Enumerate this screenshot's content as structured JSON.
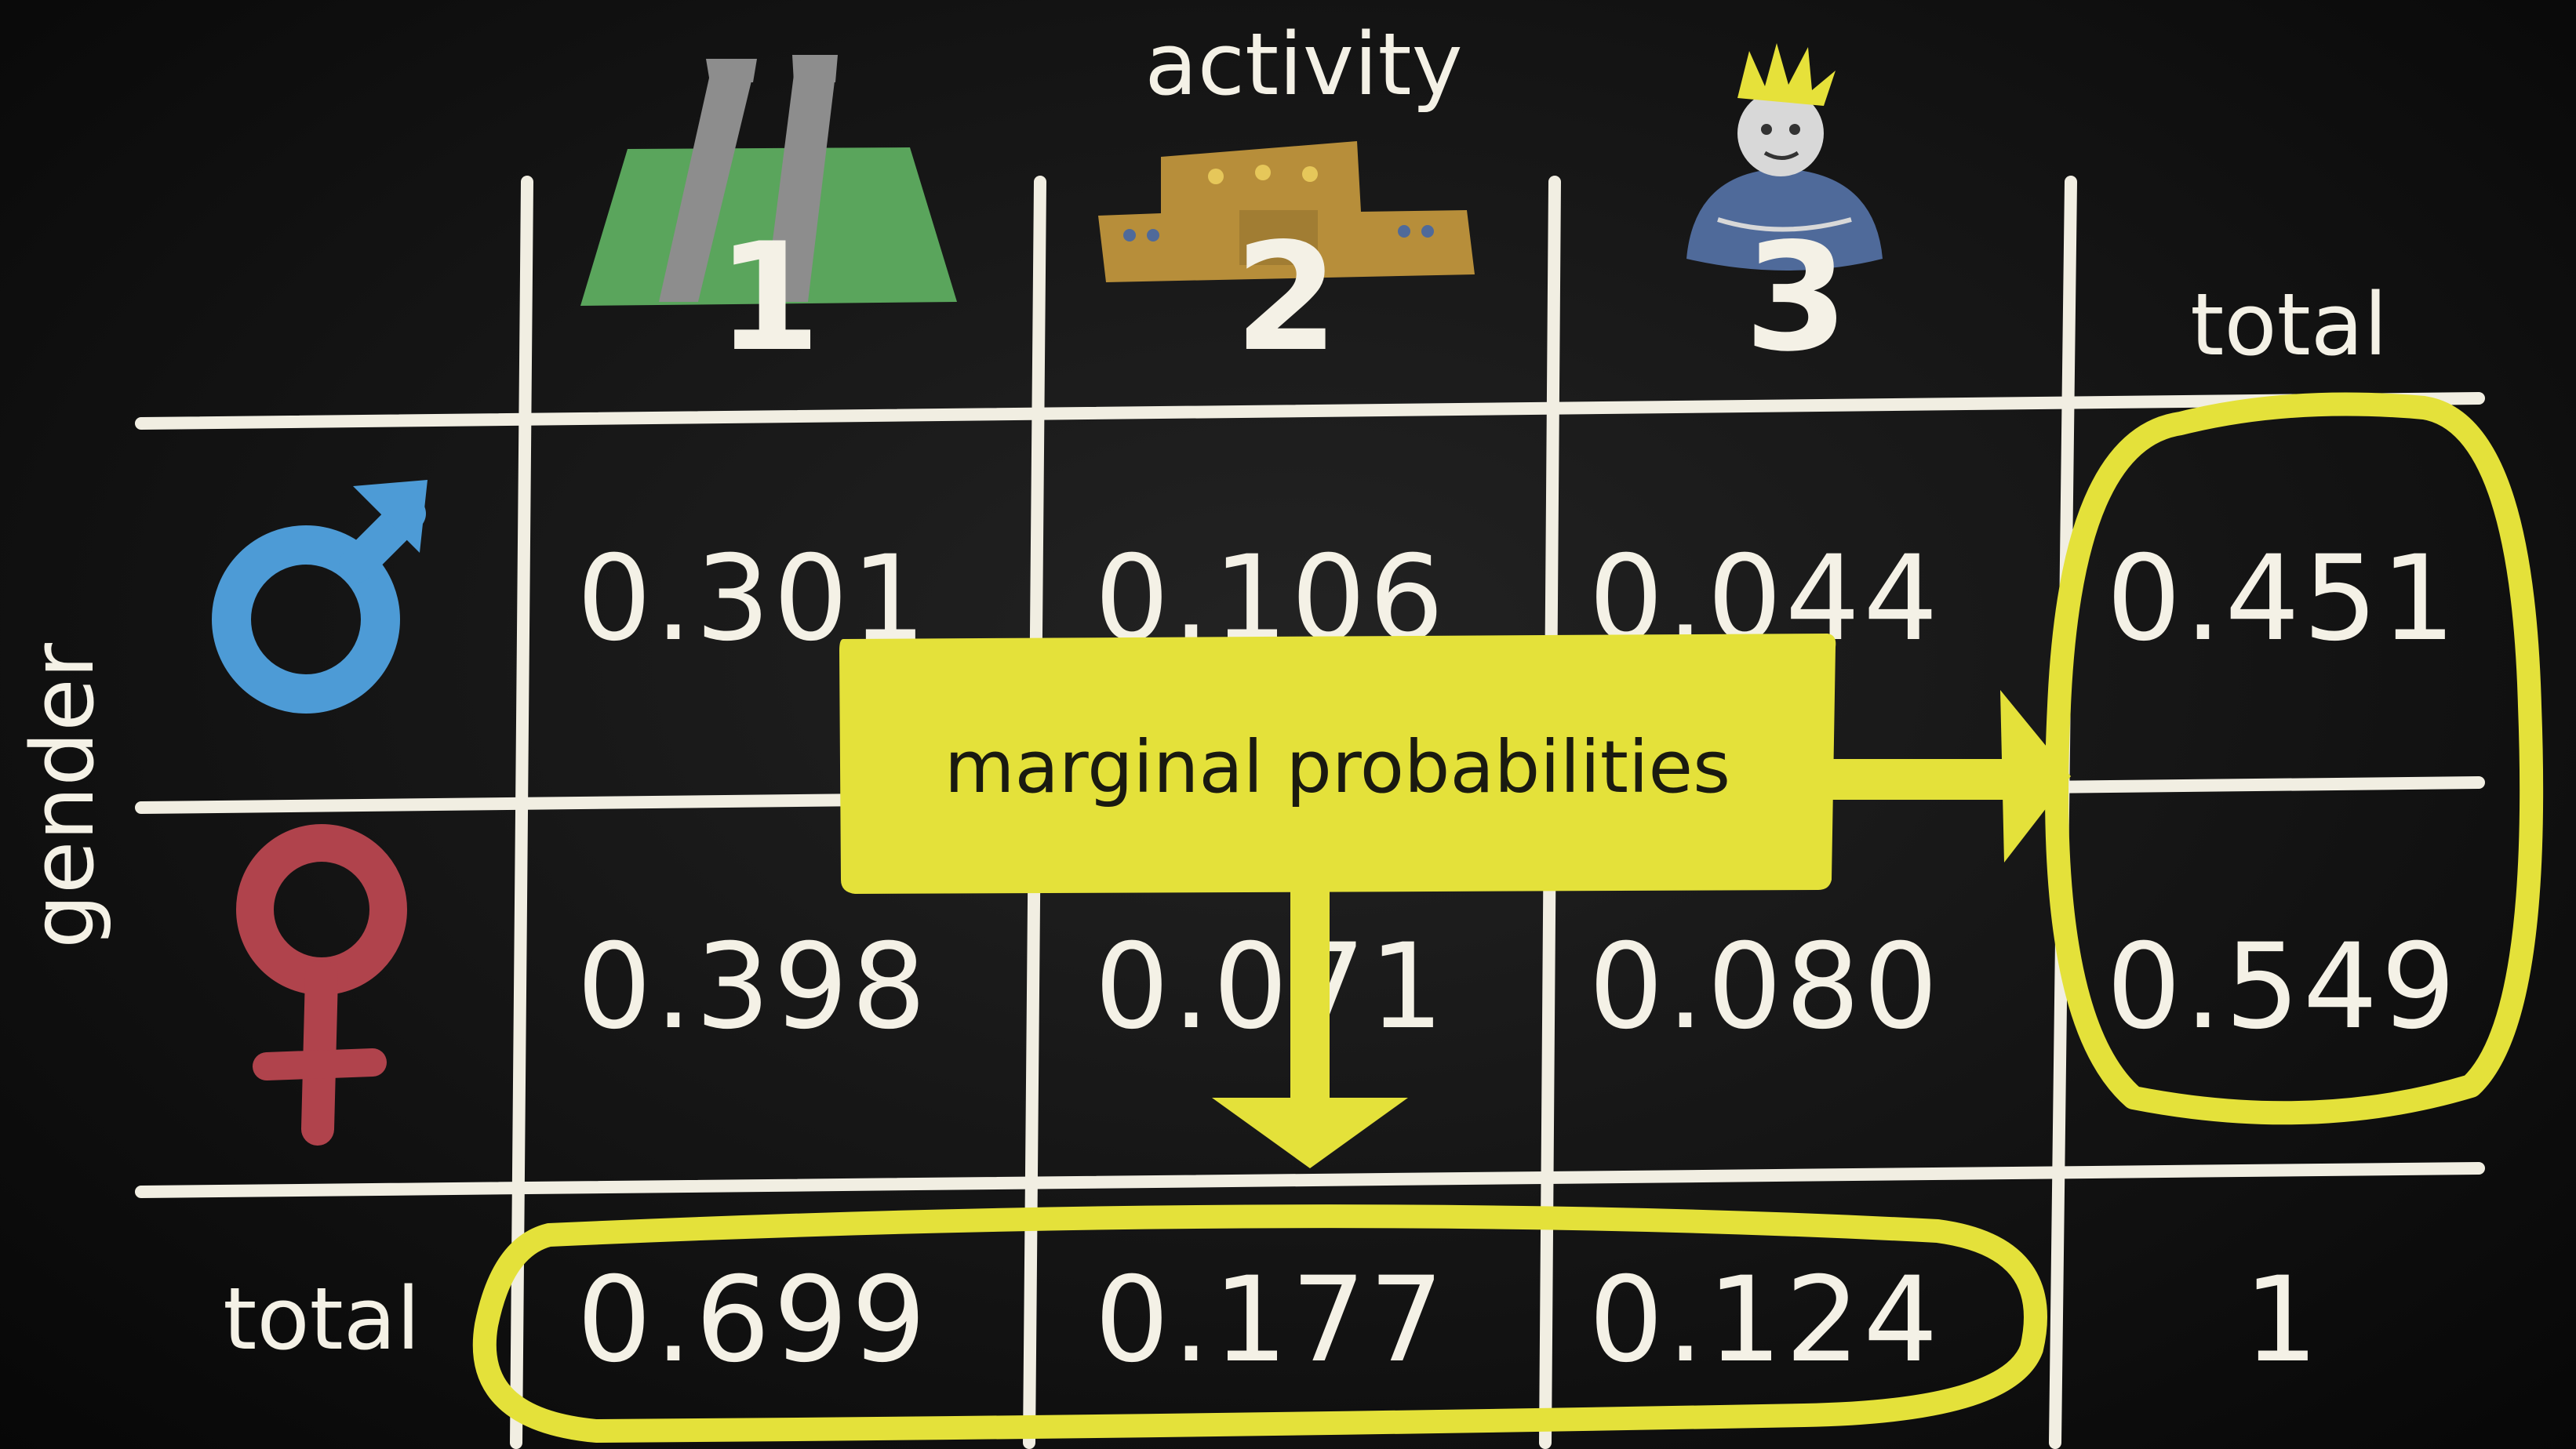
{
  "axis_labels": {
    "columns": "activity",
    "rows": "gender"
  },
  "column_headers": {
    "col1": "1",
    "col2": "2",
    "col3": "3",
    "total": "total"
  },
  "row_headers": {
    "male_icon": "male-symbol",
    "female_icon": "female-symbol",
    "total": "total"
  },
  "table": {
    "male": [
      "0.301",
      "0.106",
      "0.044",
      "0.451"
    ],
    "female": [
      "0.398",
      "0.071",
      "0.080",
      "0.549"
    ],
    "total": [
      "0.699",
      "0.177",
      "0.124",
      "1"
    ]
  },
  "callout": {
    "label": "marginal probabilities"
  },
  "colors": {
    "background": "#141414",
    "chalk": "#f4f1e6",
    "highlight": "#e4e13a",
    "male": "#4d9bd6",
    "female": "#b0434c",
    "grass": "#5aa55c",
    "building": "#b78e3a",
    "water": "#4f6a9a"
  }
}
